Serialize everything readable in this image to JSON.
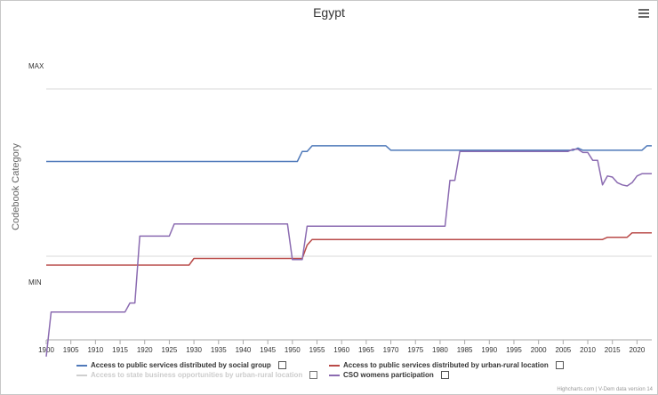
{
  "chart_data": {
    "type": "line",
    "title": "Egypt",
    "ylabel": "Codebook Category",
    "xlabel": "",
    "xlim": [
      1900,
      2023
    ],
    "x_ticks": [
      "1900",
      "1905",
      "1910",
      "1915",
      "1920",
      "1925",
      "1930",
      "1935",
      "1940",
      "1945",
      "1950",
      "1955",
      "1960",
      "1965",
      "1970",
      "1975",
      "1980",
      "1985",
      "1990",
      "1995",
      "2000",
      "2005",
      "2010",
      "2015",
      "2020"
    ],
    "y_labels": {
      "max": "MAX",
      "min": "MIN"
    },
    "grid": true,
    "legend_position": "bottom",
    "series": [
      {
        "name": "Access to public services distributed by social group",
        "color": "#4f79b9",
        "visible": true,
        "points": [
          [
            1900,
            2.35
          ],
          [
            1951,
            2.35
          ],
          [
            1952,
            2.44
          ],
          [
            1953,
            2.44
          ],
          [
            1954,
            2.49
          ],
          [
            1969,
            2.49
          ],
          [
            1970,
            2.45
          ],
          [
            2007,
            2.45
          ],
          [
            2008,
            2.47
          ],
          [
            2009,
            2.45
          ],
          [
            2021,
            2.45
          ],
          [
            2022,
            2.49
          ],
          [
            2023,
            2.49
          ]
        ]
      },
      {
        "name": "Access to public services distributed by urban-rural location",
        "color": "#b94a48",
        "visible": true,
        "points": [
          [
            1900,
            1.42
          ],
          [
            1929,
            1.42
          ],
          [
            1930,
            1.48
          ],
          [
            1949,
            1.48
          ],
          [
            1950,
            1.48
          ],
          [
            1952,
            1.48
          ],
          [
            1953,
            1.6
          ],
          [
            1954,
            1.65
          ],
          [
            2013,
            1.65
          ],
          [
            2014,
            1.67
          ],
          [
            2018,
            1.67
          ],
          [
            2019,
            1.71
          ],
          [
            2023,
            1.71
          ]
        ]
      },
      {
        "name": "Access to state business opportunities by urban-rural location",
        "color": "#cfcfcf",
        "visible": false,
        "points": []
      },
      {
        "name": "CSO womens participation",
        "color": "#8b6bb1",
        "visible": true,
        "points": [
          [
            1900,
            0.6
          ],
          [
            1901,
            1.0
          ],
          [
            1916,
            1.0
          ],
          [
            1917,
            1.08
          ],
          [
            1918,
            1.08
          ],
          [
            1919,
            1.68
          ],
          [
            1925,
            1.68
          ],
          [
            1926,
            1.79
          ],
          [
            1949,
            1.79
          ],
          [
            1950,
            1.47
          ],
          [
            1952,
            1.47
          ],
          [
            1953,
            1.77
          ],
          [
            1981,
            1.77
          ],
          [
            1982,
            2.18
          ],
          [
            1983,
            2.18
          ],
          [
            1984,
            2.44
          ],
          [
            2006,
            2.44
          ],
          [
            2007,
            2.46
          ],
          [
            2008,
            2.46
          ],
          [
            2009,
            2.43
          ],
          [
            2010,
            2.43
          ],
          [
            2011,
            2.36
          ],
          [
            2012,
            2.36
          ],
          [
            2013,
            2.14
          ],
          [
            2014,
            2.22
          ],
          [
            2015,
            2.21
          ],
          [
            2016,
            2.16
          ],
          [
            2017,
            2.14
          ],
          [
            2018,
            2.13
          ],
          [
            2019,
            2.16
          ],
          [
            2020,
            2.22
          ],
          [
            2021,
            2.24
          ],
          [
            2023,
            2.24
          ]
        ]
      }
    ]
  },
  "credit": "Highcharts.com | V-Dem data version 14",
  "menu_icon": "hamburger-menu-icon"
}
